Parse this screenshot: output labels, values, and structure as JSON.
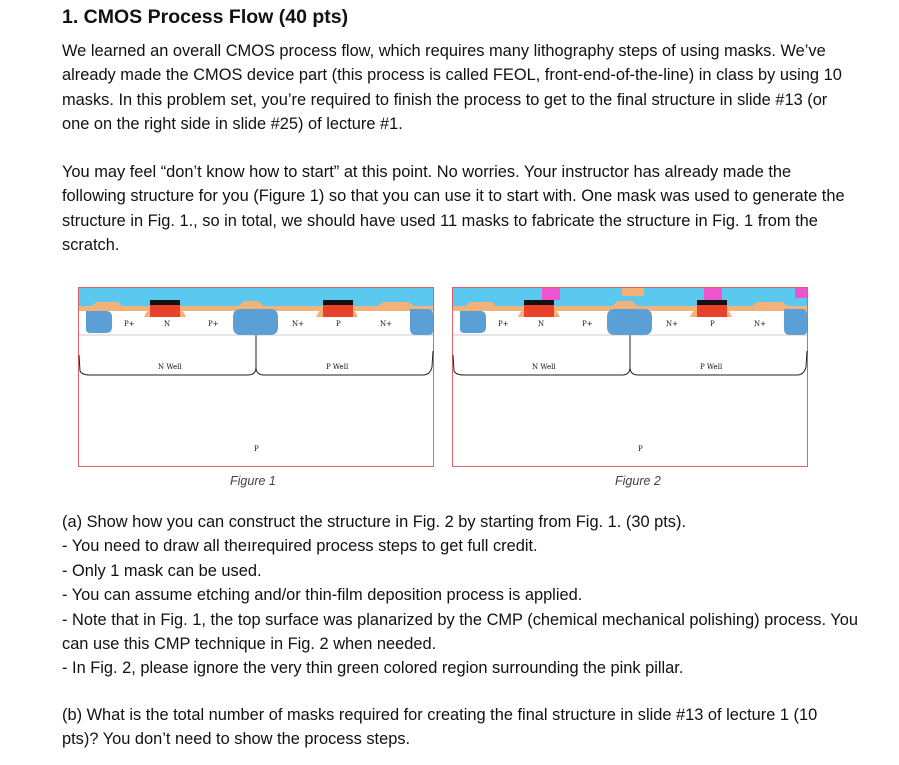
{
  "problem": {
    "title": "1. CMOS Process Flow (40 pts)",
    "paragraph1": "We learned an overall CMOS process flow, which requires many lithography steps of using masks. We’ve already made the CMOS device part (this process is called FEOL, front-end-of-the-line) in class by using 10 masks. In this problem set, you’re required to finish the process to get to the final structure in slide #13 (or one on the right side in slide #25) of lecture #1.",
    "paragraph2": "You may feel “don’t know how to start” at this point. No worries. Your instructor has already made the following structure for you (Figure 1) so that you can use it to start with. One mask was used to generate the structure in Fig. 1., so in total, we should have used 11 masks to fabricate the structure in Fig. 1 from the scratch."
  },
  "figures": {
    "figure1": {
      "caption": "Figure 1",
      "labels": {
        "pplus_left": "P+",
        "n_left": "N",
        "pplus_right": "P+",
        "nplus_left": "N+",
        "p_mid": "P",
        "nplus_right": "N+",
        "nwell": "N Well",
        "pwell": "P Well",
        "substrate": "P"
      }
    },
    "figure2": {
      "caption": "Figure 2",
      "labels": {
        "pplus_left": "P+",
        "n_left": "N",
        "pplus_right": "P+",
        "nplus_left": "N+",
        "p_mid": "P",
        "nplus_right": "N+",
        "nwell": "N Well",
        "pwell": "P Well",
        "substrate": "P"
      }
    },
    "colors": {
      "substrate_border": "#e0606a",
      "oxide": "#5bc8f0",
      "sti": "#5a9fd6",
      "spacer": "#f2b27a",
      "gate_poly": "#e8412c",
      "gate_metal": "#111111",
      "contact": "#ee55cc",
      "contact_top": "#f5b07a"
    }
  },
  "part_a": {
    "intro": "(a) Show how you can construct the structure in Fig. 2 by starting from Fig. 1. (30 pts).",
    "items": [
      "- You need to draw all theırequired process steps to get full credit.",
      "- Only 1 mask can be used.",
      "- You can assume etching and/or thin-film deposition process is applied.",
      "- Note that in Fig. 1, the top surface was planarized by the CMP (chemical mechanical polishing) process. You can use this CMP technique in Fig. 2 when needed.",
      "- In Fig. 2, please ignore the very thin green colored region surrounding the pink pillar."
    ]
  },
  "part_b": {
    "text": "(b) What is the total number of masks required for creating the final structure in slide #13 of lecture 1 (10 pts)? You don’t need to show the process steps."
  }
}
